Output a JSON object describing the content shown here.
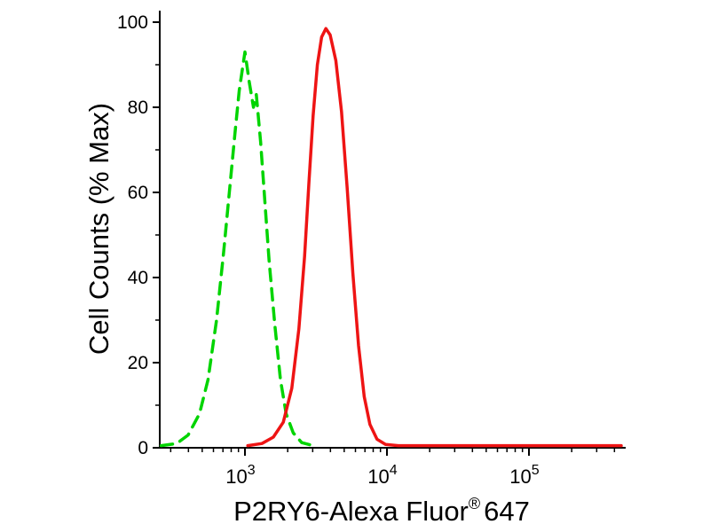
{
  "figure": {
    "background": "#ffffff",
    "description": "Flow cytometry overlay histogram"
  },
  "chart_data": {
    "type": "line",
    "title": "",
    "xlabel": "P2RY6-Alexa Fluor® 647",
    "xlabel_parts": {
      "main": "P2RY6-Alexa Fluor",
      "sup": "®",
      "suffix": "647"
    },
    "ylabel": "Cell Counts (% Max)",
    "grid": false,
    "legend": "none",
    "x_axis": {
      "scale": "log10",
      "range_log10": [
        2.4,
        5.65
      ],
      "major_tick_exponents": [
        3,
        4,
        5
      ],
      "major_tick_labels": [
        "10³",
        "10⁴",
        "10⁵"
      ]
    },
    "y_axis": {
      "range": [
        0,
        100
      ],
      "major_ticks": [
        0,
        20,
        40,
        60,
        80,
        100
      ],
      "minor_ticks": [
        10,
        30,
        50,
        70,
        90
      ]
    },
    "axis_color": "#000000",
    "series": [
      {
        "name": "green-dashed-curve",
        "color": "#00d400",
        "style": "dashed",
        "stroke_width": 3.5,
        "peak": {
          "x_value": 1000,
          "y_percent_max": 93
        },
        "points": [
          [
            2.41,
            0.5
          ],
          [
            2.52,
            1
          ],
          [
            2.6,
            3
          ],
          [
            2.68,
            8
          ],
          [
            2.74,
            16
          ],
          [
            2.8,
            30
          ],
          [
            2.85,
            46
          ],
          [
            2.89,
            60
          ],
          [
            2.93,
            74
          ],
          [
            2.96,
            84
          ],
          [
            3.0,
            93
          ],
          [
            3.03,
            86
          ],
          [
            3.06,
            80
          ],
          [
            3.08,
            83
          ],
          [
            3.11,
            72
          ],
          [
            3.14,
            58
          ],
          [
            3.17,
            44
          ],
          [
            3.21,
            29
          ],
          [
            3.25,
            16
          ],
          [
            3.29,
            8
          ],
          [
            3.34,
            3.5
          ],
          [
            3.4,
            1.2
          ],
          [
            3.48,
            0.5
          ]
        ]
      },
      {
        "name": "red-solid-curve",
        "color": "#ee1414",
        "style": "solid",
        "stroke_width": 3.5,
        "peak": {
          "x_value": 3500,
          "y_percent_max": 98.5
        },
        "points": [
          [
            3.02,
            0.5
          ],
          [
            3.12,
            1
          ],
          [
            3.2,
            2.5
          ],
          [
            3.27,
            6
          ],
          [
            3.33,
            14
          ],
          [
            3.38,
            28
          ],
          [
            3.42,
            45
          ],
          [
            3.45,
            62
          ],
          [
            3.48,
            78
          ],
          [
            3.51,
            90
          ],
          [
            3.54,
            96.5
          ],
          [
            3.57,
            98.5
          ],
          [
            3.6,
            97
          ],
          [
            3.64,
            91
          ],
          [
            3.68,
            79
          ],
          [
            3.72,
            61
          ],
          [
            3.76,
            41
          ],
          [
            3.8,
            24
          ],
          [
            3.84,
            12
          ],
          [
            3.88,
            5.5
          ],
          [
            3.93,
            2
          ],
          [
            3.99,
            0.8
          ],
          [
            4.08,
            0.5
          ],
          [
            5.65,
            0.5
          ]
        ]
      }
    ]
  }
}
